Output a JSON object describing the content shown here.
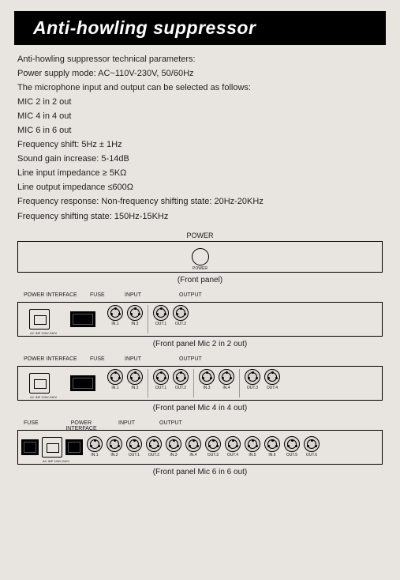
{
  "title": "Anti-howling suppressor",
  "specs": {
    "heading": "Anti-howling suppressor technical parameters:",
    "power_supply": "Power supply mode: AC~110V-230V, 50/60Hz",
    "mic_intro": "The microphone input and output can be selected as follows:",
    "mic2": "MIC 2 in 2 out",
    "mic4": "MIC 4 in 4 out",
    "mic6": "MIC 6 in 6 out",
    "freq_shift": "Frequency shift: 5Hz ± 1Hz",
    "sound_gain": "Sound gain increase: 5-14dB",
    "line_in": "Line input impedance ≥ 5KΩ",
    "line_out": "Line output impedance ≤600Ω",
    "freq_response": "Frequency response: Non-frequency shifting state: 20Hz-20KHz",
    "freq_shift_state": "Frequency shifting state: 150Hz-15KHz"
  },
  "labels": {
    "power": "POWER",
    "power_small": "POWER",
    "front_panel": "(Front panel)",
    "power_interface": "POWER INTERFACE",
    "fuse": "FUSE",
    "input": "INPUT",
    "output": "OUTPUT",
    "ac_label": "AC INP 100V-240V"
  },
  "panel2": {
    "caption": "(Front panel Mic 2 in 2 out)",
    "inputs": [
      "IN.1",
      "IN.2"
    ],
    "outputs": [
      "OUT.1",
      "OUT.2"
    ]
  },
  "panel4": {
    "caption": "(Front panel Mic 4 in 4 out)",
    "inputs": [
      "IN.1",
      "IN.2"
    ],
    "outputs": [
      "OUT.1",
      "OUT.2",
      "IN.3",
      "IN.4",
      "OUT.3",
      "OUT.4"
    ]
  },
  "panel6": {
    "caption": "(Front panel Mic 6 in 6 out)",
    "connectors": [
      "IN.1",
      "IN.2",
      "OUT.1",
      "OUT.2",
      "IN.3",
      "IN.4",
      "OUT.3",
      "OUT.4",
      "IN.5",
      "IN.6",
      "OUT.5",
      "OUT.6"
    ]
  },
  "colors": {
    "background": "#e8e5e0",
    "title_bg": "#000000",
    "title_fg": "#ffffff",
    "text": "#1a1a1a"
  }
}
